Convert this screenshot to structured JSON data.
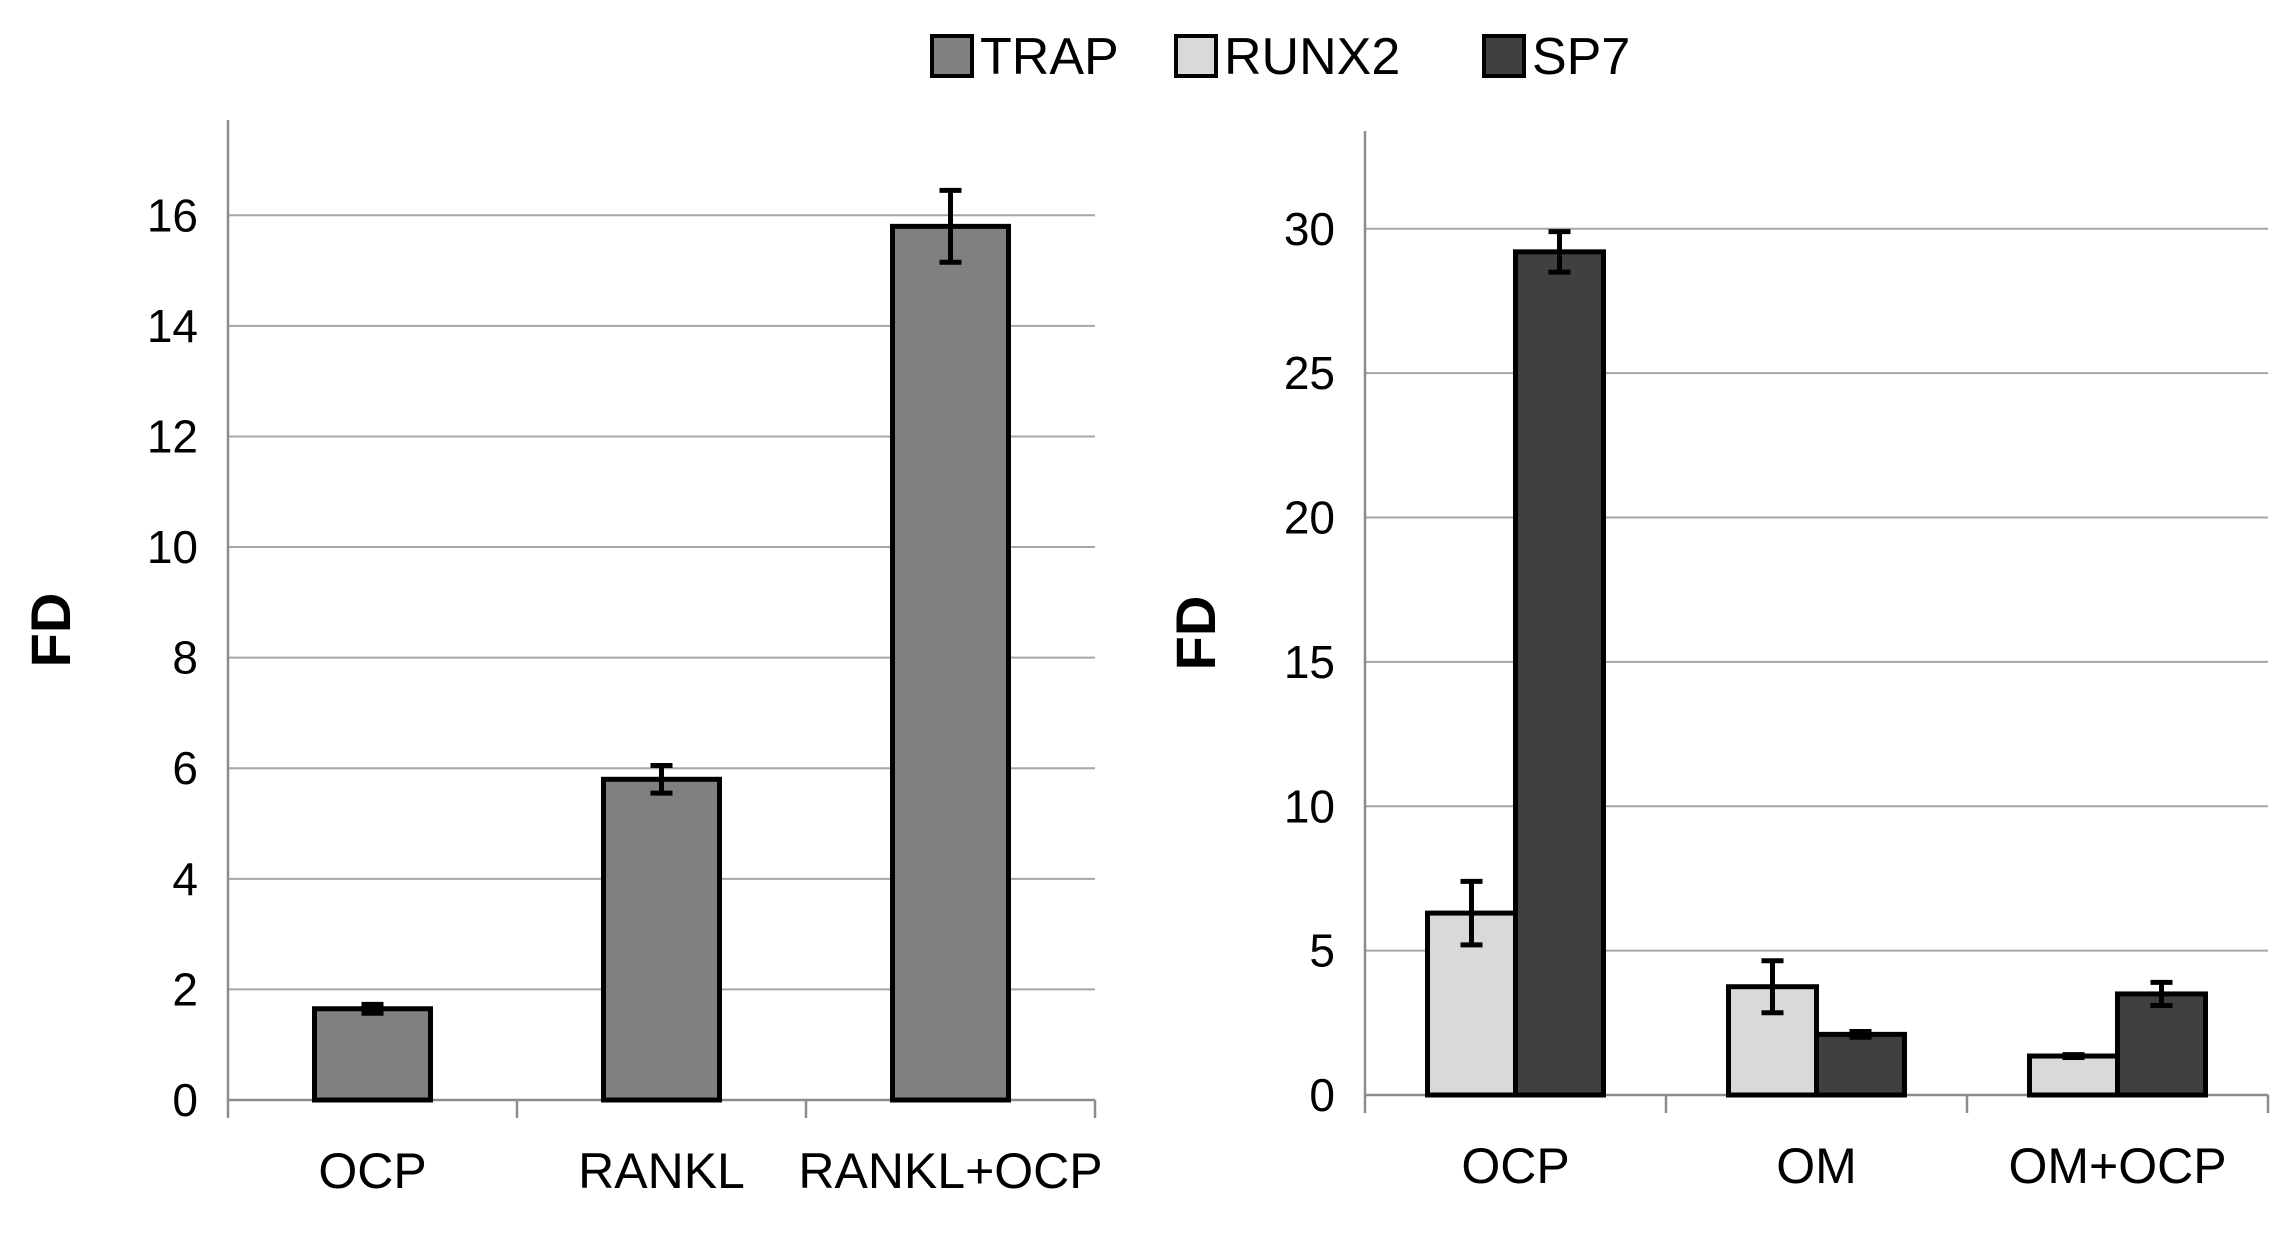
{
  "legend": [
    {
      "name": "TRAP",
      "color": "#808080"
    },
    {
      "name": "RUNX2",
      "color": "#d9d9d9"
    },
    {
      "name": "SP7",
      "color": "#404040"
    }
  ],
  "chart_data": [
    {
      "type": "bar",
      "ylabel": "FD",
      "xlabel": "",
      "categories": [
        "OCP",
        "RANKL",
        "RANKL+OCP"
      ],
      "ylim": [
        0,
        17
      ],
      "yticks": [
        0,
        2,
        4,
        6,
        8,
        10,
        12,
        14,
        16
      ],
      "series": [
        {
          "name": "TRAP",
          "values": [
            1.65,
            5.8,
            15.8
          ],
          "errors": [
            0.08,
            0.25,
            0.65
          ]
        }
      ]
    },
    {
      "type": "bar",
      "ylabel": "FD",
      "xlabel": "",
      "categories": [
        "OCP",
        "OM",
        "OM+OCP"
      ],
      "ylim": [
        0,
        32
      ],
      "yticks": [
        0,
        5,
        10,
        15,
        20,
        25,
        30
      ],
      "series": [
        {
          "name": "RUNX2",
          "values": [
            6.3,
            3.75,
            1.35
          ],
          "errors": [
            1.1,
            0.9,
            0.05
          ]
        },
        {
          "name": "SP7",
          "values": [
            29.2,
            2.1,
            3.5
          ],
          "errors": [
            0.7,
            0.1,
            0.4
          ]
        }
      ]
    }
  ]
}
